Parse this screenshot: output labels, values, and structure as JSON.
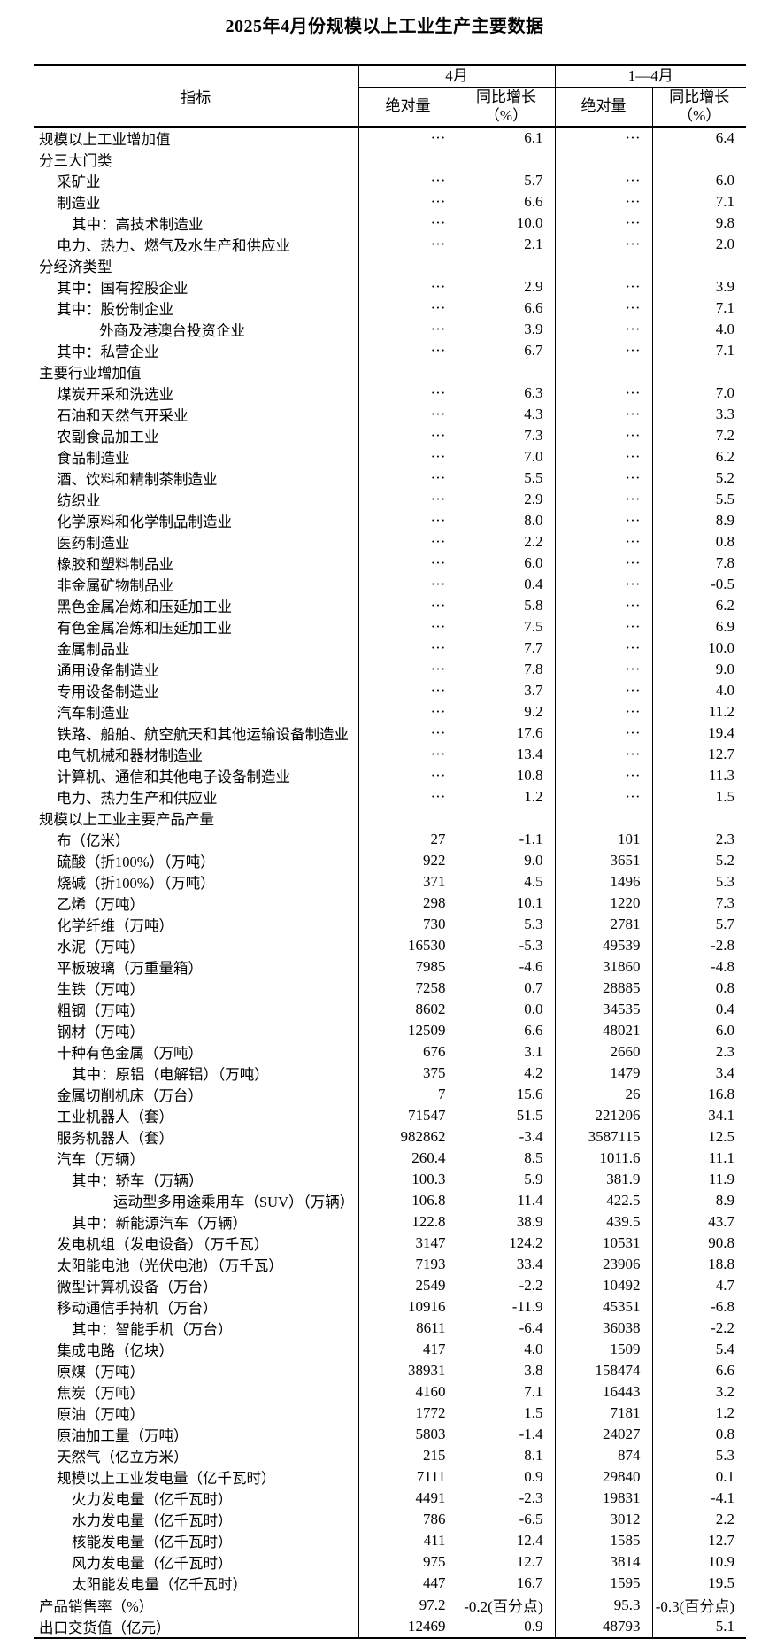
{
  "title": "2025年4月份规模以上工业生产主要数据",
  "table": {
    "header": {
      "indicator": "指标",
      "april": "4月",
      "jan_apr": "1—4月",
      "absolute": "绝对量",
      "yoy": "同比增长",
      "yoy_unit": "（%）"
    },
    "rows": [
      {
        "label": "规模以上工业增加值",
        "indent": 0,
        "apr_abs": "···",
        "apr_yoy": "6.1",
        "cum_abs": "···",
        "cum_yoy": "6.4"
      },
      {
        "label": "分三大门类",
        "indent": 0,
        "apr_abs": "",
        "apr_yoy": "",
        "cum_abs": "",
        "cum_yoy": ""
      },
      {
        "label": "采矿业",
        "indent": 1,
        "apr_abs": "···",
        "apr_yoy": "5.7",
        "cum_abs": "···",
        "cum_yoy": "6.0"
      },
      {
        "label": "制造业",
        "indent": 1,
        "apr_abs": "···",
        "apr_yoy": "6.6",
        "cum_abs": "···",
        "cum_yoy": "7.1"
      },
      {
        "label": "其中：高技术制造业",
        "indent": 2,
        "apr_abs": "···",
        "apr_yoy": "10.0",
        "cum_abs": "···",
        "cum_yoy": "9.8"
      },
      {
        "label": "电力、热力、燃气及水生产和供应业",
        "indent": 1,
        "apr_abs": "···",
        "apr_yoy": "2.1",
        "cum_abs": "···",
        "cum_yoy": "2.0"
      },
      {
        "label": "分经济类型",
        "indent": 0,
        "apr_abs": "",
        "apr_yoy": "",
        "cum_abs": "",
        "cum_yoy": ""
      },
      {
        "label": "其中：国有控股企业",
        "indent": 1,
        "apr_abs": "···",
        "apr_yoy": "2.9",
        "cum_abs": "···",
        "cum_yoy": "3.9"
      },
      {
        "label": "其中：股份制企业",
        "indent": 1,
        "apr_abs": "···",
        "apr_yoy": "6.6",
        "cum_abs": "···",
        "cum_yoy": "7.1"
      },
      {
        "label": "外商及港澳台投资企业",
        "indent": 3,
        "apr_abs": "···",
        "apr_yoy": "3.9",
        "cum_abs": "···",
        "cum_yoy": "4.0"
      },
      {
        "label": "其中：私营企业",
        "indent": 1,
        "apr_abs": "···",
        "apr_yoy": "6.7",
        "cum_abs": "···",
        "cum_yoy": "7.1"
      },
      {
        "label": "主要行业增加值",
        "indent": 0,
        "apr_abs": "",
        "apr_yoy": "",
        "cum_abs": "",
        "cum_yoy": ""
      },
      {
        "label": "煤炭开采和洗选业",
        "indent": 1,
        "apr_abs": "···",
        "apr_yoy": "6.3",
        "cum_abs": "···",
        "cum_yoy": "7.0"
      },
      {
        "label": "石油和天然气开采业",
        "indent": 1,
        "apr_abs": "···",
        "apr_yoy": "4.3",
        "cum_abs": "···",
        "cum_yoy": "3.3"
      },
      {
        "label": "农副食品加工业",
        "indent": 1,
        "apr_abs": "···",
        "apr_yoy": "7.3",
        "cum_abs": "···",
        "cum_yoy": "7.2"
      },
      {
        "label": "食品制造业",
        "indent": 1,
        "apr_abs": "···",
        "apr_yoy": "7.0",
        "cum_abs": "···",
        "cum_yoy": "6.2"
      },
      {
        "label": "酒、饮料和精制茶制造业",
        "indent": 1,
        "apr_abs": "···",
        "apr_yoy": "5.5",
        "cum_abs": "···",
        "cum_yoy": "5.2"
      },
      {
        "label": "纺织业",
        "indent": 1,
        "apr_abs": "···",
        "apr_yoy": "2.9",
        "cum_abs": "···",
        "cum_yoy": "5.5"
      },
      {
        "label": "化学原料和化学制品制造业",
        "indent": 1,
        "apr_abs": "···",
        "apr_yoy": "8.0",
        "cum_abs": "···",
        "cum_yoy": "8.9"
      },
      {
        "label": "医药制造业",
        "indent": 1,
        "apr_abs": "···",
        "apr_yoy": "2.2",
        "cum_abs": "···",
        "cum_yoy": "0.8"
      },
      {
        "label": "橡胶和塑料制品业",
        "indent": 1,
        "apr_abs": "···",
        "apr_yoy": "6.0",
        "cum_abs": "···",
        "cum_yoy": "7.8"
      },
      {
        "label": "非金属矿物制品业",
        "indent": 1,
        "apr_abs": "···",
        "apr_yoy": "0.4",
        "cum_abs": "···",
        "cum_yoy": "-0.5"
      },
      {
        "label": "黑色金属冶炼和压延加工业",
        "indent": 1,
        "apr_abs": "···",
        "apr_yoy": "5.8",
        "cum_abs": "···",
        "cum_yoy": "6.2"
      },
      {
        "label": "有色金属冶炼和压延加工业",
        "indent": 1,
        "apr_abs": "···",
        "apr_yoy": "7.5",
        "cum_abs": "···",
        "cum_yoy": "6.9"
      },
      {
        "label": "金属制品业",
        "indent": 1,
        "apr_abs": "···",
        "apr_yoy": "7.7",
        "cum_abs": "···",
        "cum_yoy": "10.0"
      },
      {
        "label": "通用设备制造业",
        "indent": 1,
        "apr_abs": "···",
        "apr_yoy": "7.8",
        "cum_abs": "···",
        "cum_yoy": "9.0"
      },
      {
        "label": "专用设备制造业",
        "indent": 1,
        "apr_abs": "···",
        "apr_yoy": "3.7",
        "cum_abs": "···",
        "cum_yoy": "4.0"
      },
      {
        "label": "汽车制造业",
        "indent": 1,
        "apr_abs": "···",
        "apr_yoy": "9.2",
        "cum_abs": "···",
        "cum_yoy": "11.2"
      },
      {
        "label": "铁路、船舶、航空航天和其他运输设备制造业",
        "indent": 1,
        "apr_abs": "···",
        "apr_yoy": "17.6",
        "cum_abs": "···",
        "cum_yoy": "19.4"
      },
      {
        "label": "电气机械和器材制造业",
        "indent": 1,
        "apr_abs": "···",
        "apr_yoy": "13.4",
        "cum_abs": "···",
        "cum_yoy": "12.7"
      },
      {
        "label": "计算机、通信和其他电子设备制造业",
        "indent": 1,
        "apr_abs": "···",
        "apr_yoy": "10.8",
        "cum_abs": "···",
        "cum_yoy": "11.3"
      },
      {
        "label": "电力、热力生产和供应业",
        "indent": 1,
        "apr_abs": "···",
        "apr_yoy": "1.2",
        "cum_abs": "···",
        "cum_yoy": "1.5"
      },
      {
        "label": "规模以上工业主要产品产量",
        "indent": 0,
        "apr_abs": "",
        "apr_yoy": "",
        "cum_abs": "",
        "cum_yoy": ""
      },
      {
        "label": "布（亿米）",
        "indent": 1,
        "apr_abs": "27",
        "apr_yoy": "-1.1",
        "cum_abs": "101",
        "cum_yoy": "2.3"
      },
      {
        "label": "硫酸（折100%）（万吨）",
        "indent": 1,
        "apr_abs": "922",
        "apr_yoy": "9.0",
        "cum_abs": "3651",
        "cum_yoy": "5.2"
      },
      {
        "label": "烧碱（折100%）（万吨）",
        "indent": 1,
        "apr_abs": "371",
        "apr_yoy": "4.5",
        "cum_abs": "1496",
        "cum_yoy": "5.3"
      },
      {
        "label": "乙烯（万吨）",
        "indent": 1,
        "apr_abs": "298",
        "apr_yoy": "10.1",
        "cum_abs": "1220",
        "cum_yoy": "7.3"
      },
      {
        "label": "化学纤维（万吨）",
        "indent": 1,
        "apr_abs": "730",
        "apr_yoy": "5.3",
        "cum_abs": "2781",
        "cum_yoy": "5.7"
      },
      {
        "label": "水泥（万吨）",
        "indent": 1,
        "apr_abs": "16530",
        "apr_yoy": "-5.3",
        "cum_abs": "49539",
        "cum_yoy": "-2.8"
      },
      {
        "label": "平板玻璃（万重量箱）",
        "indent": 1,
        "apr_abs": "7985",
        "apr_yoy": "-4.6",
        "cum_abs": "31860",
        "cum_yoy": "-4.8"
      },
      {
        "label": "生铁（万吨）",
        "indent": 1,
        "apr_abs": "7258",
        "apr_yoy": "0.7",
        "cum_abs": "28885",
        "cum_yoy": "0.8"
      },
      {
        "label": "粗钢（万吨）",
        "indent": 1,
        "apr_abs": "8602",
        "apr_yoy": "0.0",
        "cum_abs": "34535",
        "cum_yoy": "0.4"
      },
      {
        "label": "钢材（万吨）",
        "indent": 1,
        "apr_abs": "12509",
        "apr_yoy": "6.6",
        "cum_abs": "48021",
        "cum_yoy": "6.0"
      },
      {
        "label": "十种有色金属（万吨）",
        "indent": 1,
        "apr_abs": "676",
        "apr_yoy": "3.1",
        "cum_abs": "2660",
        "cum_yoy": "2.3"
      },
      {
        "label": "其中：原铝（电解铝）（万吨）",
        "indent": 2,
        "apr_abs": "375",
        "apr_yoy": "4.2",
        "cum_abs": "1479",
        "cum_yoy": "3.4"
      },
      {
        "label": "金属切削机床（万台）",
        "indent": 1,
        "apr_abs": "7",
        "apr_yoy": "15.6",
        "cum_abs": "26",
        "cum_yoy": "16.8"
      },
      {
        "label": "工业机器人（套）",
        "indent": 1,
        "apr_abs": "71547",
        "apr_yoy": "51.5",
        "cum_abs": "221206",
        "cum_yoy": "34.1"
      },
      {
        "label": "服务机器人（套）",
        "indent": 1,
        "apr_abs": "982862",
        "apr_yoy": "-3.4",
        "cum_abs": "3587115",
        "cum_yoy": "12.5"
      },
      {
        "label": "汽车（万辆）",
        "indent": 1,
        "apr_abs": "260.4",
        "apr_yoy": "8.5",
        "cum_abs": "1011.6",
        "cum_yoy": "11.1"
      },
      {
        "label": "其中：轿车（万辆）",
        "indent": 2,
        "apr_abs": "100.3",
        "apr_yoy": "5.9",
        "cum_abs": "381.9",
        "cum_yoy": "11.9"
      },
      {
        "label": "运动型多用途乘用车（SUV）（万辆）",
        "indent": 4,
        "apr_abs": "106.8",
        "apr_yoy": "11.4",
        "cum_abs": "422.5",
        "cum_yoy": "8.9"
      },
      {
        "label": "其中：新能源汽车（万辆）",
        "indent": 2,
        "apr_abs": "122.8",
        "apr_yoy": "38.9",
        "cum_abs": "439.5",
        "cum_yoy": "43.7"
      },
      {
        "label": "发电机组（发电设备）（万千瓦）",
        "indent": 1,
        "apr_abs": "3147",
        "apr_yoy": "124.2",
        "cum_abs": "10531",
        "cum_yoy": "90.8"
      },
      {
        "label": "太阳能电池（光伏电池）（万千瓦）",
        "indent": 1,
        "apr_abs": "7193",
        "apr_yoy": "33.4",
        "cum_abs": "23906",
        "cum_yoy": "18.8"
      },
      {
        "label": "微型计算机设备（万台）",
        "indent": 1,
        "apr_abs": "2549",
        "apr_yoy": "-2.2",
        "cum_abs": "10492",
        "cum_yoy": "4.7"
      },
      {
        "label": "移动通信手持机（万台）",
        "indent": 1,
        "apr_abs": "10916",
        "apr_yoy": "-11.9",
        "cum_abs": "45351",
        "cum_yoy": "-6.8"
      },
      {
        "label": "其中：智能手机（万台）",
        "indent": 2,
        "apr_abs": "8611",
        "apr_yoy": "-6.4",
        "cum_abs": "36038",
        "cum_yoy": "-2.2"
      },
      {
        "label": "集成电路（亿块）",
        "indent": 1,
        "apr_abs": "417",
        "apr_yoy": "4.0",
        "cum_abs": "1509",
        "cum_yoy": "5.4"
      },
      {
        "label": "原煤（万吨）",
        "indent": 1,
        "apr_abs": "38931",
        "apr_yoy": "3.8",
        "cum_abs": "158474",
        "cum_yoy": "6.6"
      },
      {
        "label": "焦炭（万吨）",
        "indent": 1,
        "apr_abs": "4160",
        "apr_yoy": "7.1",
        "cum_abs": "16443",
        "cum_yoy": "3.2"
      },
      {
        "label": "原油（万吨）",
        "indent": 1,
        "apr_abs": "1772",
        "apr_yoy": "1.5",
        "cum_abs": "7181",
        "cum_yoy": "1.2"
      },
      {
        "label": "原油加工量（万吨）",
        "indent": 1,
        "apr_abs": "5803",
        "apr_yoy": "-1.4",
        "cum_abs": "24027",
        "cum_yoy": "0.8"
      },
      {
        "label": "天然气（亿立方米）",
        "indent": 1,
        "apr_abs": "215",
        "apr_yoy": "8.1",
        "cum_abs": "874",
        "cum_yoy": "5.3"
      },
      {
        "label": "规模以上工业发电量（亿千瓦时）",
        "indent": 1,
        "apr_abs": "7111",
        "apr_yoy": "0.9",
        "cum_abs": "29840",
        "cum_yoy": "0.1"
      },
      {
        "label": "火力发电量（亿千瓦时）",
        "indent": 2,
        "apr_abs": "4491",
        "apr_yoy": "-2.3",
        "cum_abs": "19831",
        "cum_yoy": "-4.1"
      },
      {
        "label": "水力发电量（亿千瓦时）",
        "indent": 2,
        "apr_abs": "786",
        "apr_yoy": "-6.5",
        "cum_abs": "3012",
        "cum_yoy": "2.2"
      },
      {
        "label": "核能发电量（亿千瓦时）",
        "indent": 2,
        "apr_abs": "411",
        "apr_yoy": "12.4",
        "cum_abs": "1585",
        "cum_yoy": "12.7"
      },
      {
        "label": "风力发电量（亿千瓦时）",
        "indent": 2,
        "apr_abs": "975",
        "apr_yoy": "12.7",
        "cum_abs": "3814",
        "cum_yoy": "10.9"
      },
      {
        "label": "太阳能发电量（亿千瓦时）",
        "indent": 2,
        "apr_abs": "447",
        "apr_yoy": "16.7",
        "cum_abs": "1595",
        "cum_yoy": "19.5"
      },
      {
        "label": "产品销售率（%）",
        "indent": 0,
        "apr_abs": "97.2",
        "apr_yoy": "-0.2(百分点)",
        "cum_abs": "95.3",
        "cum_yoy": "-0.3(百分点)"
      },
      {
        "label": "出口交货值（亿元）",
        "indent": 0,
        "apr_abs": "12469",
        "apr_yoy": "0.9",
        "cum_abs": "48793",
        "cum_yoy": "5.1"
      }
    ]
  }
}
